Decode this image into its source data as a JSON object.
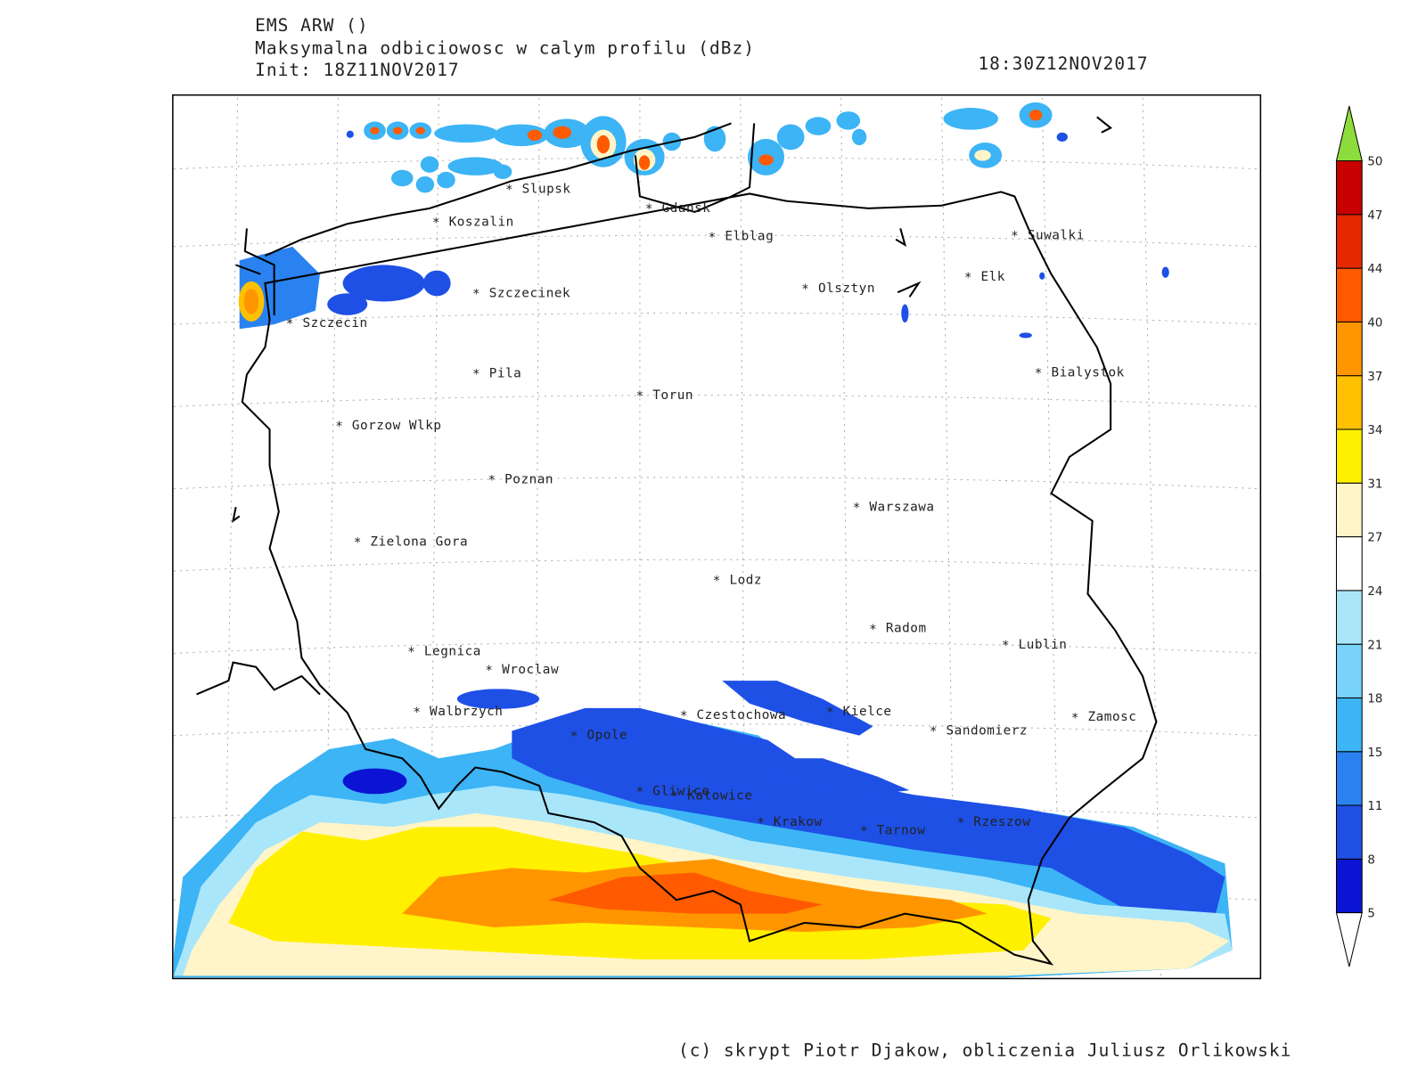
{
  "header": {
    "model": "EMS ARW ()",
    "field": "Maksymalna odbiciowosc w calym profilu (dBz)",
    "init": "Init: 18Z11NOV2017",
    "valid": "18:30Z12NOV2017"
  },
  "cities": [
    "Slupsk",
    "Koszalin",
    "Gdansk",
    "Elblag",
    "Suwalki",
    "Elk",
    "Olsztyn",
    "Szczecinek",
    "Szczecin",
    "Bialystok",
    "Pila",
    "Torun",
    "Gorzow Wlkp",
    "Poznan",
    "Warszawa",
    "Zielona Gora",
    "Lodz",
    "Radom",
    "Lublin",
    "Legnica",
    "Wroclaw",
    "Walbrzych",
    "Czestochowa",
    "Kielce",
    "Sandomierz",
    "Zamosc",
    "Opole",
    "Gliwice",
    "Katowice",
    "Krakow",
    "Tarnow",
    "Rzeszow"
  ],
  "colorbar": {
    "levels": [
      5,
      8,
      11,
      15,
      18,
      21,
      24,
      27,
      31,
      34,
      37,
      40,
      44,
      47,
      50
    ],
    "colors": [
      "#0a14d2",
      "#1e50e6",
      "#2a82f0",
      "#3cb4f5",
      "#78d2fa",
      "#aae6fa",
      "#ffffff",
      "#fff5c8",
      "#fff000",
      "#ffc000",
      "#ff9600",
      "#ff5a00",
      "#e62800",
      "#c80000"
    ],
    "under": "#ffffff",
    "over": "#8cdc3c"
  },
  "footer": "(c) skrypt Piotr Djakow, obliczenia Juliusz Orlikowski"
}
